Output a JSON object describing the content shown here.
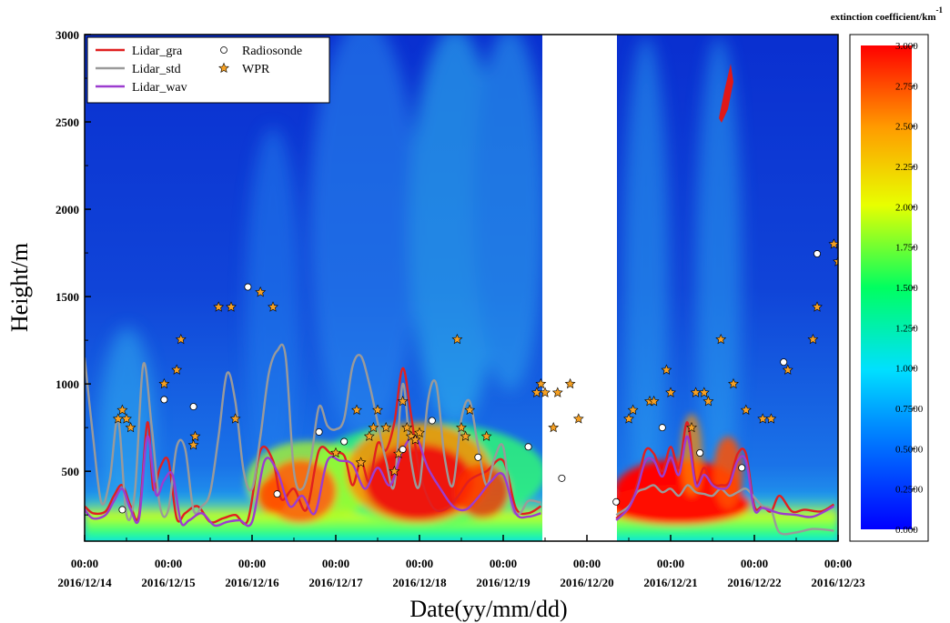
{
  "chart_data": {
    "type": "heatmap",
    "xlabel": "Date(yy/mm/dd)",
    "ylabel": "Height/m",
    "colorbar_label": "extinction coefficient/km",
    "colorbar_label_sup": "-1",
    "ylim": [
      100,
      3000
    ],
    "y_ticks": [
      500,
      1000,
      1500,
      2000,
      2500,
      3000
    ],
    "xlim": [
      0,
      9
    ],
    "x_tick_time": [
      "00:00",
      "00:00",
      "00:00",
      "00:00",
      "00:00",
      "00:00",
      "00:00",
      "00:00",
      "00:00",
      "00:00"
    ],
    "x_tick_date": [
      "2016/12/14",
      "2016/12/15",
      "2016/12/16",
      "2016/12/17",
      "2016/12/18",
      "2016/12/19",
      "2016/12/20",
      "2016/12/21",
      "2016/12/22",
      "2016/12/23"
    ],
    "colorbar_ticks": [
      "3.000",
      "2.750",
      "2.500",
      "2.250",
      "2.000",
      "1.750",
      "1.500",
      "1.250",
      "1.000",
      "0.7500",
      "0.5000",
      "0.2500",
      "0.000"
    ],
    "colorbar_range": [
      0,
      3
    ],
    "no_data_gap": [
      5.45,
      6.35
    ],
    "colors": {
      "gra": "#e02020",
      "std": "#9a9a9a",
      "wav": "#9c3ccf",
      "wpr_fill": "#f5a023"
    },
    "legend": {
      "placement": "top-left",
      "items": [
        {
          "label": "Lidar_gra",
          "kind": "line",
          "color": "#e02020"
        },
        {
          "label": "Radiosonde",
          "kind": "circle"
        },
        {
          "label": "Lidar_std",
          "kind": "line",
          "color": "#9a9a9a"
        },
        {
          "label": "WPR",
          "kind": "star"
        },
        {
          "label": "Lidar_wav",
          "kind": "line",
          "color": "#9c3ccf"
        }
      ]
    },
    "series": [
      {
        "name": "Lidar_gra",
        "type": "line",
        "color": "#e02020",
        "x": [
          0,
          0.1,
          0.25,
          0.35,
          0.45,
          0.55,
          0.65,
          0.75,
          0.82,
          0.9,
          1.0,
          1.1,
          1.2,
          1.35,
          1.5,
          1.65,
          1.8,
          1.95,
          2.1,
          2.25,
          2.35,
          2.5,
          2.65,
          2.8,
          2.95,
          3.1,
          3.2,
          3.3,
          3.4,
          3.5,
          3.6,
          3.7,
          3.8,
          3.9,
          4.0,
          4.15,
          4.3,
          4.45,
          4.6,
          4.8,
          5.0,
          5.15,
          5.3,
          5.45
        ],
        "y": [
          300,
          260,
          270,
          360,
          420,
          300,
          250,
          780,
          400,
          520,
          560,
          230,
          260,
          300,
          210,
          230,
          250,
          220,
          620,
          560,
          340,
          400,
          280,
          620,
          600,
          590,
          420,
          560,
          440,
          660,
          620,
          780,
          1090,
          820,
          500,
          300,
          280,
          350,
          450,
          500,
          560,
          290,
          260,
          300
        ]
      },
      {
        "name": "Lidar_gra",
        "type": "line",
        "color": "#e02020",
        "x": [
          6.35,
          6.5,
          6.6,
          6.7,
          6.8,
          6.9,
          7.0,
          7.1,
          7.2,
          7.3,
          7.4,
          7.5,
          7.6,
          7.7,
          7.8,
          7.9,
          8.0,
          8.1,
          8.2,
          8.3,
          8.45,
          8.6,
          8.8,
          8.95
        ],
        "y": [
          230,
          300,
          430,
          620,
          600,
          500,
          640,
          520,
          780,
          440,
          520,
          430,
          420,
          440,
          600,
          600,
          300,
          300,
          270,
          360,
          270,
          280,
          270,
          310
        ]
      },
      {
        "name": "Lidar_std",
        "type": "line",
        "color": "#9a9a9a",
        "x": [
          0,
          0.1,
          0.2,
          0.3,
          0.4,
          0.5,
          0.6,
          0.7,
          0.8,
          0.9,
          1.0,
          1.1,
          1.2,
          1.3,
          1.4,
          1.5,
          1.6,
          1.7,
          1.8,
          1.9,
          2.0,
          2.1,
          2.2,
          2.3,
          2.4,
          2.5,
          2.6,
          2.7,
          2.8,
          2.9,
          3.0,
          3.1,
          3.2,
          3.3,
          3.4,
          3.5,
          3.6,
          3.7,
          3.8,
          3.9,
          4.0,
          4.1,
          4.2,
          4.3,
          4.4,
          4.5,
          4.6,
          4.7,
          4.8,
          4.9,
          5.0,
          5.1,
          5.2,
          5.3,
          5.45
        ],
        "y": [
          1150,
          700,
          320,
          450,
          800,
          250,
          380,
          1110,
          760,
          300,
          280,
          640,
          630,
          280,
          300,
          380,
          700,
          1060,
          900,
          500,
          400,
          700,
          1060,
          1190,
          1160,
          500,
          400,
          560,
          870,
          760,
          740,
          800,
          1100,
          1160,
          1000,
          780,
          560,
          420,
          1000,
          560,
          420,
          900,
          1000,
          580,
          420,
          800,
          900,
          640,
          420,
          580,
          640,
          300,
          260,
          330,
          320
        ]
      },
      {
        "name": "Lidar_std",
        "type": "line",
        "color": "#9a9a9a",
        "x": [
          6.35,
          6.5,
          6.6,
          6.7,
          6.8,
          6.9,
          7.0,
          7.1,
          7.2,
          7.3,
          7.4,
          7.5,
          7.6,
          7.7,
          7.8,
          7.9,
          8.0,
          8.1,
          8.2,
          8.3,
          8.5,
          8.7,
          8.95
        ],
        "y": [
          250,
          300,
          380,
          400,
          420,
          380,
          400,
          360,
          420,
          380,
          370,
          360,
          400,
          360,
          380,
          400,
          350,
          300,
          280,
          150,
          150,
          170,
          160
        ]
      },
      {
        "name": "Lidar_wav",
        "type": "line",
        "color": "#9c3ccf",
        "x": [
          0,
          0.1,
          0.25,
          0.35,
          0.45,
          0.55,
          0.65,
          0.75,
          0.85,
          0.95,
          1.05,
          1.15,
          1.25,
          1.4,
          1.55,
          1.7,
          1.85,
          2.0,
          2.15,
          2.3,
          2.45,
          2.6,
          2.75,
          2.9,
          3.05,
          3.2,
          3.35,
          3.5,
          3.65,
          3.8,
          3.95,
          4.1,
          4.25,
          4.4,
          4.55,
          4.7,
          4.85,
          5.0,
          5.15,
          5.3,
          5.45
        ],
        "y": [
          280,
          230,
          250,
          330,
          400,
          280,
          230,
          700,
          370,
          450,
          480,
          210,
          220,
          260,
          190,
          210,
          220,
          210,
          560,
          500,
          300,
          360,
          260,
          560,
          560,
          540,
          400,
          520,
          420,
          620,
          700,
          520,
          400,
          300,
          280,
          350,
          440,
          480,
          260,
          240,
          260
        ]
      },
      {
        "name": "Lidar_wav",
        "type": "line",
        "color": "#9c3ccf",
        "x": [
          6.35,
          6.5,
          6.6,
          6.7,
          6.8,
          6.9,
          7.0,
          7.1,
          7.2,
          7.3,
          7.4,
          7.5,
          7.6,
          7.7,
          7.8,
          7.9,
          8.0,
          8.1,
          8.3,
          8.5,
          8.7,
          8.95
        ],
        "y": [
          220,
          290,
          400,
          560,
          560,
          470,
          580,
          480,
          700,
          420,
          480,
          420,
          400,
          420,
          560,
          560,
          280,
          290,
          260,
          250,
          240,
          300
        ]
      },
      {
        "name": "Radiosonde",
        "type": "scatter",
        "marker": "circle",
        "points": [
          [
            0.45,
            280
          ],
          [
            0.95,
            910
          ],
          [
            1.3,
            870
          ],
          [
            1.95,
            1555
          ],
          [
            2.3,
            370
          ],
          [
            2.8,
            725
          ],
          [
            3.1,
            670
          ],
          [
            3.8,
            625
          ],
          [
            4.15,
            790
          ],
          [
            4.7,
            580
          ],
          [
            5.3,
            640
          ],
          [
            5.7,
            460
          ],
          [
            6.35,
            325
          ],
          [
            6.9,
            750
          ],
          [
            7.35,
            605
          ],
          [
            7.85,
            520
          ],
          [
            8.35,
            1125
          ],
          [
            8.75,
            1745
          ]
        ]
      },
      {
        "name": "WPR",
        "type": "scatter",
        "marker": "star",
        "points": [
          [
            0.4,
            800
          ],
          [
            0.45,
            850
          ],
          [
            0.5,
            800
          ],
          [
            0.55,
            750
          ],
          [
            0.95,
            1000
          ],
          [
            1.1,
            1080
          ],
          [
            1.15,
            1255
          ],
          [
            1.3,
            650
          ],
          [
            1.32,
            700
          ],
          [
            1.6,
            1440
          ],
          [
            1.75,
            1440
          ],
          [
            1.8,
            800
          ],
          [
            2.1,
            1525
          ],
          [
            2.25,
            1440
          ],
          [
            3.0,
            605
          ],
          [
            3.25,
            850
          ],
          [
            3.3,
            550
          ],
          [
            3.4,
            700
          ],
          [
            3.45,
            750
          ],
          [
            3.5,
            850
          ],
          [
            3.6,
            750
          ],
          [
            3.7,
            500
          ],
          [
            3.75,
            600
          ],
          [
            3.8,
            900
          ],
          [
            3.85,
            750
          ],
          [
            3.9,
            700
          ],
          [
            3.95,
            680
          ],
          [
            4.0,
            720
          ],
          [
            4.45,
            1255
          ],
          [
            4.5,
            750
          ],
          [
            4.55,
            700
          ],
          [
            4.6,
            850
          ],
          [
            4.8,
            700
          ],
          [
            5.4,
            950
          ],
          [
            5.45,
            1000
          ],
          [
            5.5,
            950
          ],
          [
            5.6,
            750
          ],
          [
            5.65,
            950
          ],
          [
            5.8,
            1000
          ],
          [
            5.9,
            800
          ],
          [
            6.5,
            800
          ],
          [
            6.55,
            850
          ],
          [
            6.75,
            900
          ],
          [
            6.8,
            900
          ],
          [
            6.95,
            1080
          ],
          [
            7.0,
            950
          ],
          [
            7.25,
            750
          ],
          [
            7.3,
            950
          ],
          [
            7.4,
            950
          ],
          [
            7.45,
            900
          ],
          [
            7.6,
            1255
          ],
          [
            7.75,
            1000
          ],
          [
            7.9,
            850
          ],
          [
            8.1,
            800
          ],
          [
            8.2,
            800
          ],
          [
            8.4,
            1080
          ],
          [
            8.7,
            1255
          ],
          [
            8.75,
            1440
          ],
          [
            8.95,
            1800
          ],
          [
            9.0,
            1700
          ]
        ]
      }
    ]
  }
}
